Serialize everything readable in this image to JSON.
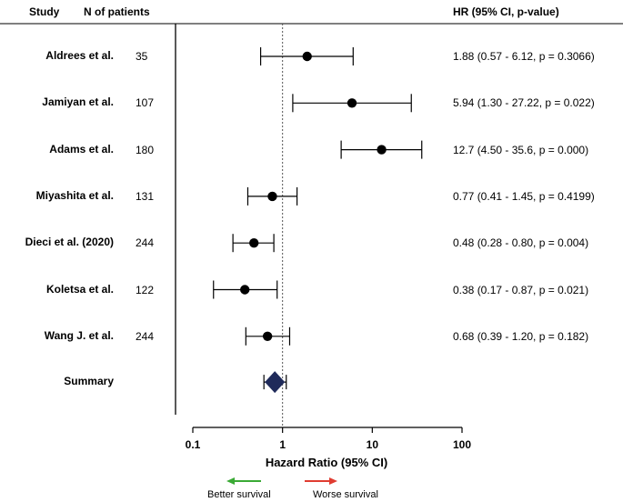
{
  "header": {
    "study": "Study",
    "n_patients": "N of patients",
    "hr": "HR (95% CI, p-value)"
  },
  "chart_data": {
    "type": "forest",
    "xlabel": "Hazard Ratio (95% CI)",
    "xscale": "log",
    "xlim": [
      0.1,
      100
    ],
    "ticks": [
      {
        "value": 0.1,
        "label": "0.1"
      },
      {
        "value": 1,
        "label": "1"
      },
      {
        "value": 10,
        "label": "10"
      },
      {
        "value": 100,
        "label": "100"
      }
    ],
    "reference_line": 1,
    "rows": [
      {
        "study": "Aldrees et al.",
        "n": "35",
        "hr": 1.88,
        "lo": 0.57,
        "hi": 6.12,
        "text": "1.88 (0.57 - 6.12, p = 0.3066)"
      },
      {
        "study": "Jamiyan et al.",
        "n": "107",
        "hr": 5.94,
        "lo": 1.3,
        "hi": 27.22,
        "text": "5.94 (1.30 - 27.22, p = 0.022)"
      },
      {
        "study": "Adams et al.",
        "n": "180",
        "hr": 12.7,
        "lo": 4.5,
        "hi": 35.6,
        "text": "12.7 (4.50 - 35.6, p = 0.000)"
      },
      {
        "study": "Miyashita et al.",
        "n": "131",
        "hr": 0.77,
        "lo": 0.41,
        "hi": 1.45,
        "text": "0.77  (0.41 - 1.45, p = 0.4199)"
      },
      {
        "study": "Dieci et al. (2020)",
        "n": "244",
        "hr": 0.48,
        "lo": 0.28,
        "hi": 0.8,
        "text": "0.48 (0.28 - 0.80, p = 0.004)"
      },
      {
        "study": "Koletsa et al.",
        "n": "122",
        "hr": 0.38,
        "lo": 0.17,
        "hi": 0.87,
        "text": "0.38 (0.17 - 0.87, p = 0.021)"
      },
      {
        "study": "Wang J. et al.",
        "n": "244",
        "hr": 0.68,
        "lo": 0.39,
        "hi": 1.2,
        "text": "0.68 (0.39 - 1.20, p = 0.182)"
      }
    ],
    "summary": {
      "study": "Summary",
      "hr": 0.82,
      "lo": 0.62,
      "hi": 1.1
    },
    "legend": {
      "better": "Better survival",
      "worse": "Worse survival",
      "better_color": "#3aaa35",
      "worse_color": "#e03c31"
    },
    "colors": {
      "summary_fill": "#1f2a5a",
      "ref_line": "#555555"
    }
  }
}
